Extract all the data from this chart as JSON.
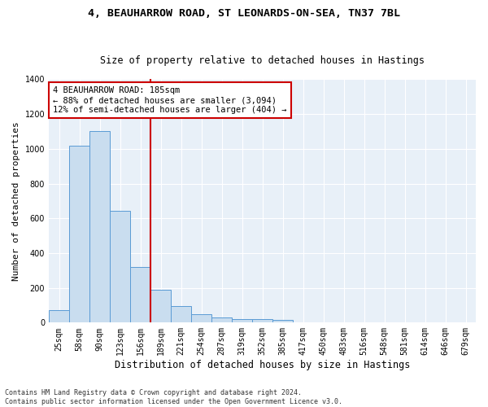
{
  "title1": "4, BEAUHARROW ROAD, ST LEONARDS-ON-SEA, TN37 7BL",
  "title2": "Size of property relative to detached houses in Hastings",
  "xlabel": "Distribution of detached houses by size in Hastings",
  "ylabel": "Number of detached properties",
  "categories": [
    "25sqm",
    "58sqm",
    "90sqm",
    "123sqm",
    "156sqm",
    "189sqm",
    "221sqm",
    "254sqm",
    "287sqm",
    "319sqm",
    "352sqm",
    "385sqm",
    "417sqm",
    "450sqm",
    "483sqm",
    "516sqm",
    "548sqm",
    "581sqm",
    "614sqm",
    "646sqm",
    "679sqm"
  ],
  "values": [
    70,
    1020,
    1100,
    645,
    320,
    190,
    95,
    50,
    30,
    20,
    18,
    15,
    0,
    0,
    0,
    0,
    0,
    0,
    0,
    0,
    0
  ],
  "bar_color": "#c9ddef",
  "bar_edge_color": "#5b9bd5",
  "annotation_text": "4 BEAUHARROW ROAD: 185sqm\n← 88% of detached houses are smaller (3,094)\n12% of semi-detached houses are larger (404) →",
  "annotation_box_color": "#ffffff",
  "annotation_box_edge": "#cc0000",
  "red_line_color": "#cc0000",
  "red_line_x": 4.5,
  "ylim": [
    0,
    1400
  ],
  "yticks": [
    0,
    200,
    400,
    600,
    800,
    1000,
    1200,
    1400
  ],
  "bg_color": "#e8f0f8",
  "footer_line1": "Contains HM Land Registry data © Crown copyright and database right 2024.",
  "footer_line2": "Contains public sector information licensed under the Open Government Licence v3.0.",
  "title1_fontsize": 9.5,
  "title2_fontsize": 8.5,
  "ylabel_fontsize": 8,
  "xlabel_fontsize": 8.5,
  "tick_fontsize": 7,
  "annot_fontsize": 7.5,
  "footer_fontsize": 6
}
